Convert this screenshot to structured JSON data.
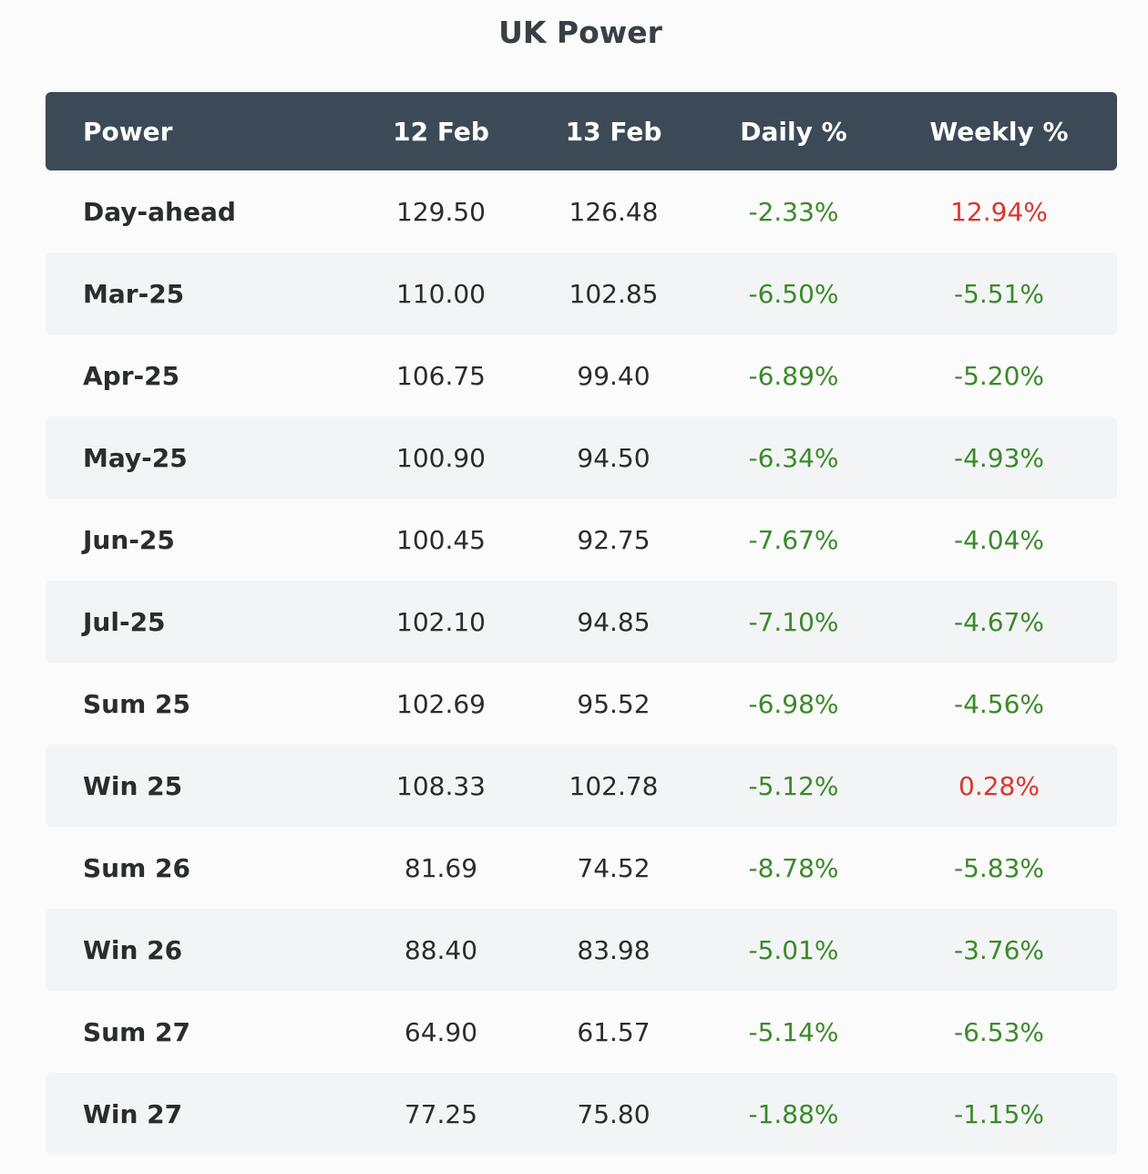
{
  "title": "UK Power",
  "colors": {
    "header_bg": "#3c4a57",
    "negative": "#3b8a2a",
    "positive": "#d9372b",
    "row_alt": "#f3f4f6"
  },
  "table": {
    "headers": [
      "Power",
      "12 Feb",
      "13 Feb",
      "Daily %",
      "Weekly %"
    ],
    "rows": [
      {
        "name": "Day-ahead",
        "d1": "129.50",
        "d2": "126.48",
        "daily": "-2.33%",
        "weekly": "12.94%"
      },
      {
        "name": "Mar-25",
        "d1": "110.00",
        "d2": "102.85",
        "daily": "-6.50%",
        "weekly": "-5.51%"
      },
      {
        "name": "Apr-25",
        "d1": "106.75",
        "d2": "99.40",
        "daily": "-6.89%",
        "weekly": "-5.20%"
      },
      {
        "name": "May-25",
        "d1": "100.90",
        "d2": "94.50",
        "daily": "-6.34%",
        "weekly": "-4.93%"
      },
      {
        "name": "Jun-25",
        "d1": "100.45",
        "d2": "92.75",
        "daily": "-7.67%",
        "weekly": "-4.04%"
      },
      {
        "name": "Jul-25",
        "d1": "102.10",
        "d2": "94.85",
        "daily": "-7.10%",
        "weekly": "-4.67%"
      },
      {
        "name": "Sum 25",
        "d1": "102.69",
        "d2": "95.52",
        "daily": "-6.98%",
        "weekly": "-4.56%"
      },
      {
        "name": "Win 25",
        "d1": "108.33",
        "d2": "102.78",
        "daily": "-5.12%",
        "weekly": "0.28%"
      },
      {
        "name": "Sum 26",
        "d1": "81.69",
        "d2": "74.52",
        "daily": "-8.78%",
        "weekly": "-5.83%"
      },
      {
        "name": "Win 26",
        "d1": "88.40",
        "d2": "83.98",
        "daily": "-5.01%",
        "weekly": "-3.76%"
      },
      {
        "name": "Sum 27",
        "d1": "64.90",
        "d2": "61.57",
        "daily": "-5.14%",
        "weekly": "-6.53%"
      },
      {
        "name": "Win 27",
        "d1": "77.25",
        "d2": "75.80",
        "daily": "-1.88%",
        "weekly": "-1.15%"
      }
    ]
  }
}
